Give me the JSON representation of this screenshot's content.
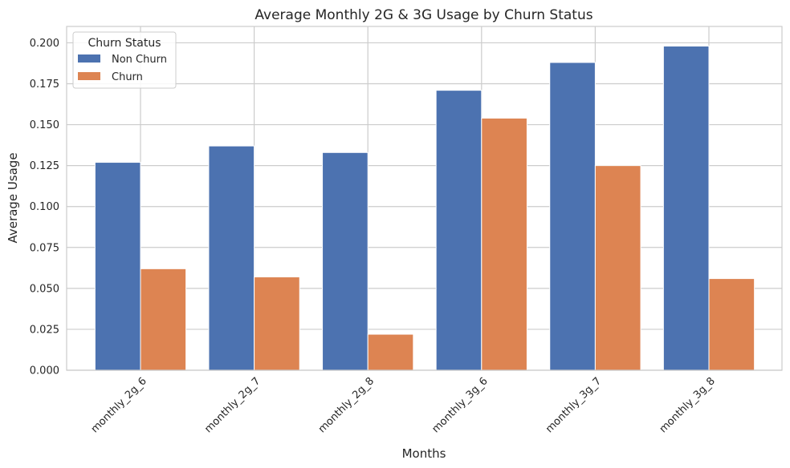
{
  "chart_data": {
    "type": "bar",
    "title": "Average Monthly 2G & 3G Usage by Churn Status",
    "xlabel": "Months",
    "ylabel": "Average Usage",
    "categories": [
      "monthly_2g_6",
      "monthly_2g_7",
      "monthly_2g_8",
      "monthly_3g_6",
      "monthly_3g_7",
      "monthly_3g_8"
    ],
    "series": [
      {
        "name": "Non Churn",
        "color": "#4c72b0",
        "values": [
          0.127,
          0.137,
          0.133,
          0.171,
          0.188,
          0.198
        ]
      },
      {
        "name": "Churn",
        "color": "#dd8452",
        "values": [
          0.062,
          0.057,
          0.022,
          0.154,
          0.125,
          0.056
        ]
      }
    ],
    "ylim": [
      0,
      0.21
    ],
    "yticks": [
      "0.000",
      "0.025",
      "0.050",
      "0.075",
      "0.100",
      "0.125",
      "0.150",
      "0.175",
      "0.200"
    ],
    "grid": true,
    "legend": {
      "title": "Churn Status",
      "position": "top-left"
    }
  }
}
